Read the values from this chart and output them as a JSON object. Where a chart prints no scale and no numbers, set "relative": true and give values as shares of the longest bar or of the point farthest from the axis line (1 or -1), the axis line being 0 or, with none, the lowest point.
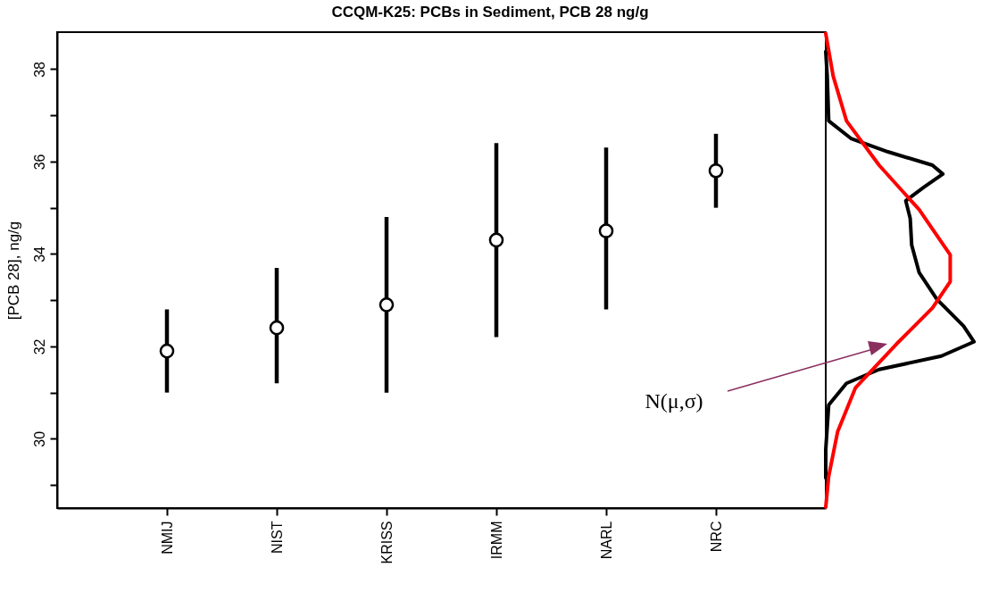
{
  "chart_data": [
    {
      "type": "scatter",
      "title": "CCQM-K25:  PCBs in Sediment,  PCB 28 ng/g",
      "ylabel": "[PCB 28], ng/g",
      "categories": [
        "NMIJ",
        "NIST",
        "KRISS",
        "IRMM",
        "NARL",
        "NRC"
      ],
      "values": [
        31.9,
        32.4,
        32.9,
        34.3,
        34.5,
        35.8
      ],
      "errors": [
        [
          31.0,
          32.8
        ],
        [
          31.2,
          33.7
        ],
        [
          31.0,
          34.8
        ],
        [
          32.2,
          36.4
        ],
        [
          32.8,
          36.3
        ],
        [
          35.0,
          36.6
        ]
      ],
      "color": "#000000",
      "marker": "circle",
      "ylim": [
        28.5,
        38.8
      ],
      "yticks": [
        {
          "value": 29,
          "label": null
        },
        30,
        {
          "value": 31,
          "label": null
        },
        32,
        {
          "value": 33,
          "label": null
        },
        34,
        {
          "value": 35,
          "label": null
        },
        36,
        {
          "value": 37,
          "label": null
        },
        38
      ]
    },
    {
      "type": "line",
      "orientation": "horizontal",
      "relative": true,
      "tick_labels": false,
      "ylim": [
        28.5,
        38.8
      ],
      "annotations": [
        "N(μ,σ)"
      ],
      "series": [
        {
          "color": "#000000",
          "x": [
            38.38,
            37.85,
            36.88,
            36.5,
            36.21,
            35.92,
            35.73,
            35.44,
            35.15,
            34.77,
            34.19,
            33.6,
            33.02,
            32.44,
            32.1,
            31.79,
            31.5,
            31.2,
            30.73,
            29.77,
            29.15
          ],
          "values": [
            0,
            0.01,
            0.02,
            0.17,
            0.42,
            0.72,
            0.79,
            0.66,
            0.54,
            0.57,
            0.58,
            0.63,
            0.75,
            0.93,
            1,
            0.78,
            0.36,
            0.14,
            0.02,
            0,
            0
          ]
        },
        {
          "color": "#ff0000",
          "x": [
            38.77,
            37.85,
            36.88,
            35.92,
            34.96,
            33.98,
            33.4,
            32.83,
            32.06,
            31.1,
            30.15,
            29.19,
            28.52
          ],
          "values": [
            0,
            0.05,
            0.14,
            0.36,
            0.63,
            0.84,
            0.84,
            0.72,
            0.48,
            0.2,
            0.08,
            0.02,
            0
          ]
        }
      ]
    }
  ]
}
